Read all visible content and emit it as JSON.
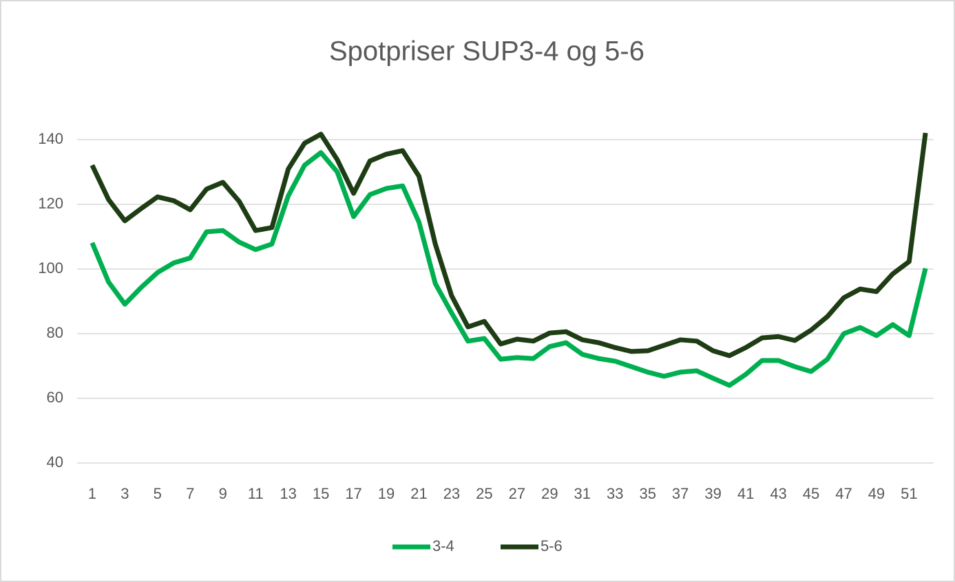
{
  "chart_data": {
    "type": "line",
    "title": "Spotpriser SUP3-4 og 5-6",
    "categories": [
      1,
      null,
      3,
      null,
      5,
      null,
      7,
      null,
      9,
      null,
      11,
      null,
      13,
      null,
      15,
      null,
      17,
      null,
      19,
      null,
      21,
      null,
      23,
      null,
      25,
      null,
      27,
      null,
      29,
      null,
      31,
      null,
      33,
      null,
      35,
      null,
      37,
      null,
      39,
      null,
      41,
      null,
      43,
      null,
      45,
      null,
      47,
      null,
      49,
      null,
      51,
      null
    ],
    "series": [
      {
        "name": "3-4",
        "color": "#00b050",
        "values": [
          108.1,
          96,
          89.1,
          94.3,
          98.9,
          101.9,
          103.4,
          111.5,
          111.9,
          108.3,
          106,
          107.7,
          122.6,
          132.1,
          136,
          130,
          116.2,
          123,
          124.9,
          125.7,
          114.5,
          95.5,
          86.4,
          77.7,
          78.5,
          72.1,
          72.6,
          72.3,
          76,
          77.2,
          73.6,
          72.3,
          71.5,
          69.8,
          68.1,
          66.8,
          68.1,
          68.5,
          66.2,
          64,
          67.4,
          71.7,
          71.7,
          69.8,
          68.3,
          72.1,
          80,
          81.9,
          79.4,
          82.8,
          79.4,
          100.2
        ]
      },
      {
        "name": "5-6",
        "color": "#1e3d14",
        "values": [
          132.1,
          121.5,
          114.9,
          118.7,
          122.3,
          121.1,
          118.3,
          124.7,
          126.8,
          120.9,
          111.9,
          112.8,
          130.9,
          138.9,
          141.7,
          133.8,
          123.4,
          133.4,
          135.5,
          136.6,
          128.7,
          107.7,
          91.7,
          82.1,
          83.8,
          76.8,
          78.3,
          77.7,
          80.2,
          80.6,
          78.1,
          77.2,
          75.7,
          74.5,
          74.7,
          76.4,
          78.1,
          77.7,
          74.7,
          73.2,
          75.7,
          78.7,
          79.1,
          77.9,
          81.1,
          85.3,
          91.1,
          93.8,
          93,
          98.5,
          102.3,
          142.1
        ]
      }
    ],
    "ylim": [
      40,
      140
    ],
    "yticks": [
      40,
      60,
      80,
      100,
      120,
      140
    ],
    "grid": true,
    "legend": "bottom"
  }
}
